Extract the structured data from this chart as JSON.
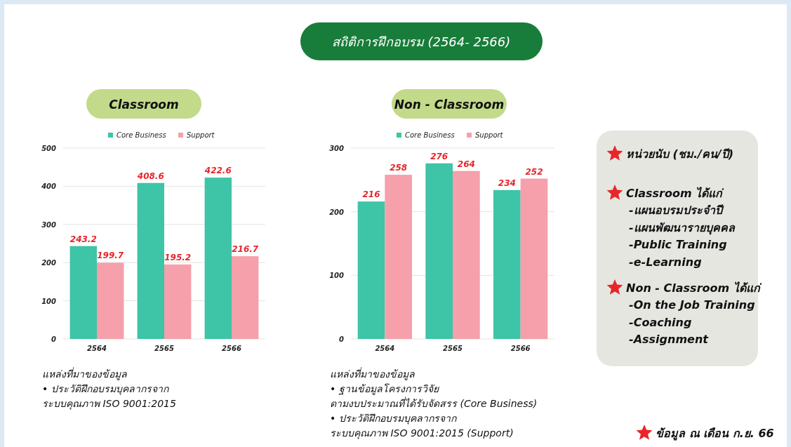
{
  "chart_data": [
    {
      "type": "other",
      "title": "สถิติการฝึกอบรม (2564- 2566)"
    },
    {
      "type": "bar",
      "title": "Classroom",
      "categories": [
        "2564",
        "2565",
        "2566"
      ],
      "series": [
        {
          "name": "Core Business",
          "color": "#3ec4a6",
          "values": [
            243.2,
            408.6,
            422.6
          ]
        },
        {
          "name": "Support",
          "color": "#f5a0aa",
          "values": [
            199.7,
            195.2,
            216.7
          ]
        }
      ],
      "ylim": [
        0,
        500
      ],
      "yticks": [
        0,
        100,
        200,
        300,
        400,
        500
      ],
      "grid": "y",
      "legend": "top",
      "data_labels": true,
      "annotations": [
        "แหล่งที่มาของข้อมูล",
        "• ประวัติฝึกอบรมบุคลากรจาก",
        "ระบบคุณภาพ ISO 9001:2015"
      ]
    },
    {
      "type": "bar",
      "title": "Non - Classroom",
      "categories": [
        "2564",
        "2565",
        "2566"
      ],
      "series": [
        {
          "name": "Core Business",
          "color": "#3ec4a6",
          "values": [
            216,
            276,
            234
          ]
        },
        {
          "name": "Support",
          "color": "#f5a0aa",
          "values": [
            258,
            264,
            252
          ]
        }
      ],
      "ylim": [
        0,
        300
      ],
      "yticks": [
        0,
        100,
        200,
        300
      ],
      "grid": "y",
      "legend": "top",
      "data_labels": true,
      "annotations": [
        "แหล่งที่มาของข้อมูล",
        "• ฐานข้อมูลโครงการวิจัย",
        "ตามงบประมาณที่ได้รับจัดสรร (Core Business)",
        "• ประวัติฝึกอบรมบุคลากรจาก",
        "ระบบคุณภาพ ISO 9001:2015 (Support)"
      ]
    },
    {
      "type": "other",
      "title": "หน่วยนับ (ชม./คน/ปี)"
    },
    {
      "type": "other",
      "title": "Classroom ได้แก่",
      "annotations": [
        "-แผนอบรมประจำปี",
        "-แผนพัฒนารายบุคคล",
        "-Public Training",
        "-e-Learning"
      ]
    },
    {
      "type": "other",
      "title": "Non - Classroom ได้แก่",
      "annotations": [
        "-On the Job Training",
        "-Coaching",
        "-Assignment"
      ]
    },
    {
      "type": "other",
      "title": "ข้อมูล ณ เดือน ก.ย. 66"
    }
  ]
}
